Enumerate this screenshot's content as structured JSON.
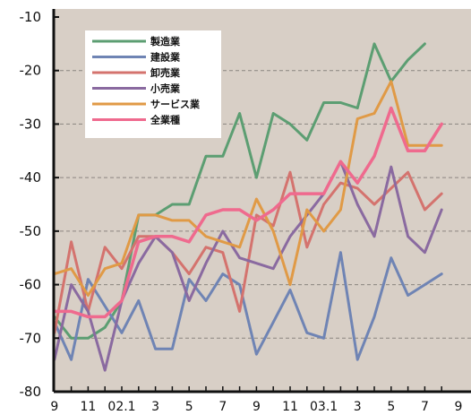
{
  "chart_data": {
    "type": "line",
    "ylim": [
      -80,
      -10
    ],
    "y_ticks": [
      -10,
      -20,
      -30,
      -40,
      -50,
      -60,
      -70,
      -80
    ],
    "y_tick_labels": [
      "-10",
      "-20",
      "-30",
      "-40",
      "-50",
      "-60",
      "-70",
      "-80"
    ],
    "grid": "horizontal dashed",
    "legend_position": "top-left",
    "x": [
      "8",
      "9",
      "10",
      "11",
      "12",
      "02.1",
      "2",
      "3",
      "4",
      "5",
      "6",
      "7",
      "8",
      "9",
      "10",
      "11",
      "12",
      "03.1",
      "2",
      "3",
      "4",
      "5",
      "6",
      "7",
      "8"
    ],
    "x_tick_labels": [
      "9",
      "11",
      "02.1",
      "3",
      "5",
      "7",
      "9",
      "11",
      "03.1",
      "3",
      "5",
      "7",
      "9"
    ],
    "series": [
      {
        "name": "製造業",
        "color": "#5c9e72",
        "values": [
          -65,
          -66,
          -70,
          -70,
          -68,
          -63,
          -47,
          -47,
          -45,
          -45,
          -36,
          -36,
          -28,
          -40,
          -28,
          -30,
          -33,
          -26,
          -26,
          -27,
          -15,
          -22,
          -18,
          -15,
          null
        ]
      },
      {
        "name": "建設業",
        "color": "#6f84b4",
        "values": [
          -74,
          -67,
          -74,
          -59,
          -64,
          -69,
          -63,
          -72,
          -72,
          -59,
          -63,
          -58,
          -60,
          -73,
          -67,
          -61,
          -69,
          -70,
          -54,
          -74,
          -66,
          -55,
          -62,
          -60,
          -58
        ]
      },
      {
        "name": "卸売業",
        "color": "#d4736e",
        "values": [
          -57,
          -69,
          -52,
          -65,
          -53,
          -57,
          -51,
          -51,
          -54,
          -58,
          -53,
          -54,
          -65,
          -47,
          -49,
          -39,
          -53,
          -45,
          -41,
          -42,
          -45,
          -42,
          -39,
          -46,
          -43
        ]
      },
      {
        "name": "小売業",
        "color": "#8a6aa0",
        "values": [
          -57,
          -74,
          -60,
          -65,
          -76,
          -63,
          -56,
          -51,
          -54,
          -63,
          -56,
          -50,
          -55,
          -56,
          -57,
          -51,
          -47,
          -43,
          -37,
          -45,
          -51,
          -38,
          -51,
          -54,
          -46
        ]
      },
      {
        "name": "サービス業",
        "color": "#e09a46",
        "values": [
          -47,
          -58,
          -57,
          -62,
          -57,
          -56,
          -47,
          -47,
          -48,
          -48,
          -51,
          -52,
          -53,
          -44,
          -50,
          -60,
          -46,
          -50,
          -46,
          -29,
          -28,
          -22,
          -34,
          -34,
          -34
        ]
      },
      {
        "name": "全業種",
        "color": "#ef6a8e",
        "values": [
          -61,
          -65,
          -65,
          -66,
          -66,
          -63,
          -52,
          -51,
          -51,
          -52,
          -47,
          -46,
          -46,
          -48,
          -46,
          -43,
          -43,
          -43,
          -37,
          -41,
          -36,
          -27,
          -35,
          -35,
          -30
        ]
      }
    ]
  }
}
